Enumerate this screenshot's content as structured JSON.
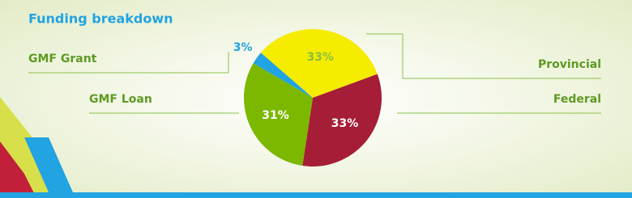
{
  "chart_data": {
    "type": "pie",
    "title": "Funding breakdown",
    "categories": [
      "Provincial",
      "Federal",
      "GMF Loan",
      "GMF Grant"
    ],
    "values": [
      33,
      33,
      31,
      3
    ],
    "value_labels": [
      "33%",
      "33%",
      "31%",
      "3%"
    ],
    "colors": [
      "#f5ec00",
      "#a51d36",
      "#7cb800",
      "#22a3e2"
    ]
  }
}
